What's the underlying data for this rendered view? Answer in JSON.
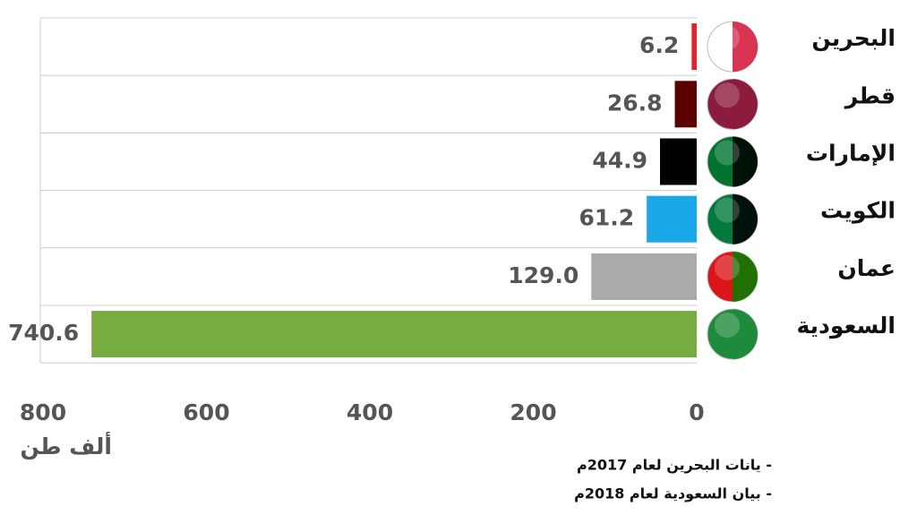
{
  "chart_data": {
    "type": "barh",
    "categories": [
      "البحرين",
      "قطر",
      "الإمارات",
      "الكويت",
      "عمان",
      "السعودية"
    ],
    "values": [
      6.2,
      26.8,
      44.9,
      61.2,
      129.0,
      740.6
    ],
    "value_labels": [
      "6.2",
      "26.8",
      "44.9",
      "61.2",
      "129.0",
      "740.6"
    ],
    "colors": [
      "#e8202a",
      "#5c0000",
      "#000000",
      "#19a9e8",
      "#aaaaaa",
      "#77ac41"
    ],
    "xlim": [
      0,
      800
    ],
    "xticks": [
      0,
      200,
      400,
      600,
      800
    ],
    "xlabel": "ألف طن",
    "notes": [
      "- يانات البحرين لعام 2017م",
      "- بيان السعودية لعام 2018م"
    ]
  }
}
